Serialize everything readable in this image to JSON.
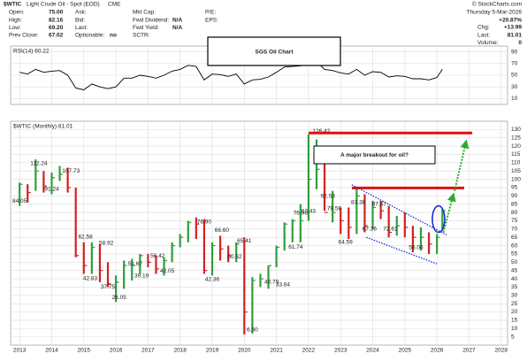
{
  "header": {
    "symbol": "$WTIC",
    "name": "Light Crude Oil - Spot (EOD)",
    "exchange": "CME",
    "watermark": "© StockCharts.com",
    "date": "Thursday  5-Mar-2026",
    "columns": [
      [
        {
          "label": "Open:",
          "value": "75.00"
        },
        {
          "label": "High:",
          "value": "82.16"
        },
        {
          "label": "Low:",
          "value": "69.20"
        },
        {
          "label": "Prev Close:",
          "value": "67.02"
        }
      ],
      [
        {
          "label": "Ask:"
        },
        {
          "label": "Bid:"
        },
        {
          "label": "Last:"
        },
        {
          "label": "Optionable:",
          "value": "no"
        }
      ],
      [
        {
          "label": "Mkt Cap:"
        },
        {
          "label": "Fwd Dividend:",
          "value": "N/A"
        },
        {
          "label": "Fwd Yield:",
          "value": "N/A"
        },
        {
          "label": "SCTR:"
        }
      ],
      [
        {
          "label": "P/E:"
        },
        {
          "label": "EPS:"
        }
      ]
    ],
    "change_pct": "+20.87%",
    "stats": [
      {
        "label": "Chg:",
        "value": "+13.99"
      },
      {
        "label": "Last:",
        "value": "81.01"
      },
      {
        "label": "Volume:",
        "value": "0"
      }
    ],
    "title_box": "SGS Oil Chart"
  },
  "chart_data": [
    {
      "type": "line",
      "label": "RSI(14) 60.22",
      "color": "#000000",
      "x": [
        2013,
        2013.25,
        2013.5,
        2013.75,
        2014,
        2014.25,
        2014.5,
        2014.75,
        2015,
        2015.25,
        2015.5,
        2015.75,
        2016,
        2016.25,
        2016.5,
        2016.75,
        2017,
        2017.25,
        2017.5,
        2017.75,
        2018,
        2018.25,
        2018.5,
        2018.75,
        2019,
        2019.25,
        2019.5,
        2019.75,
        2020,
        2020.25,
        2020.5,
        2020.75,
        2021,
        2021.25,
        2021.5,
        2021.75,
        2022,
        2022.25,
        2022.5,
        2022.75,
        2023,
        2023.25,
        2023.5,
        2023.75,
        2024,
        2024.25,
        2024.5,
        2024.75,
        2025,
        2025.25,
        2025.5,
        2025.75,
        2026,
        2026.17
      ],
      "values": [
        55,
        52,
        60,
        55,
        57,
        58,
        50,
        28,
        25,
        35,
        30,
        27,
        30,
        45,
        45,
        50,
        48,
        45,
        50,
        57,
        60,
        67,
        65,
        42,
        52,
        51,
        48,
        52,
        35,
        42,
        43,
        47,
        55,
        64,
        65,
        66,
        74,
        73,
        60,
        58,
        54,
        52,
        60,
        50,
        56,
        55,
        47,
        49,
        48,
        44,
        44,
        42,
        46,
        60.22
      ],
      "ylim": [
        0,
        100
      ],
      "yticks": [
        10,
        30,
        50,
        70,
        90
      ],
      "grid": true
    },
    {
      "type": "ohlc",
      "label": "$WTIC (Monthly) 81.01",
      "up_color": "#2e9e3e",
      "down_color": "#d32020",
      "x": [
        2013,
        2013.25,
        2013.5,
        2013.75,
        2014,
        2014.25,
        2014.5,
        2014.75,
        2015,
        2015.25,
        2015.5,
        2015.75,
        2016,
        2016.25,
        2016.5,
        2016.75,
        2017,
        2017.25,
        2017.5,
        2017.75,
        2018,
        2018.25,
        2018.5,
        2018.75,
        2019,
        2019.25,
        2019.5,
        2019.75,
        2020,
        2020.25,
        2020.5,
        2020.75,
        2021,
        2021.25,
        2021.5,
        2021.75,
        2022,
        2022.25,
        2022.5,
        2022.75,
        2023,
        2023.25,
        2023.5,
        2023.75,
        2024,
        2024.25,
        2024.5,
        2024.75,
        2025,
        2025.25,
        2025.5,
        2025.75,
        2026,
        2026.17
      ],
      "close": [
        97,
        92,
        105,
        96,
        101,
        103,
        95,
        54,
        48,
        59,
        45,
        37,
        38,
        48,
        48,
        54,
        50,
        46,
        51,
        60,
        65,
        74,
        73,
        45,
        60,
        58,
        54,
        61,
        20,
        39,
        40,
        48,
        59,
        73,
        75,
        75,
        100,
        106,
        80,
        80,
        75,
        71,
        90,
        72,
        83,
        81,
        68,
        72,
        71,
        65,
        65,
        61,
        65,
        81.01
      ],
      "high": [
        98,
        97,
        112,
        105,
        104,
        108,
        107,
        95,
        62,
        62,
        61,
        50,
        42,
        51,
        52,
        55,
        55,
        54,
        53,
        62,
        67,
        75,
        77,
        76,
        62,
        66,
        60,
        62,
        65,
        41,
        43,
        48,
        60,
        74,
        76,
        85,
        127,
        124,
        111,
        93,
        83,
        83,
        95,
        91,
        87,
        87,
        84,
        78,
        80,
        72,
        71,
        68,
        67,
        82
      ],
      "low": [
        84,
        86,
        93,
        92,
        91,
        99,
        92,
        53,
        43,
        43,
        38,
        35,
        26,
        34,
        39,
        43,
        47,
        43,
        42,
        50,
        59,
        62,
        64,
        43,
        42,
        51,
        50,
        50,
        6.5,
        7,
        35,
        34,
        47,
        57,
        62,
        62,
        75,
        94,
        81,
        74,
        67,
        64,
        67,
        68,
        70,
        76,
        65,
        66,
        65,
        56,
        57,
        55,
        55,
        69
      ],
      "xlim": [
        2012.72,
        2028.2
      ],
      "xticks": [
        2013,
        2014,
        2015,
        2016,
        2017,
        2018,
        2019,
        2020,
        2021,
        2022,
        2023,
        2024,
        2025,
        2026,
        2027,
        2028
      ],
      "ylim": [
        0,
        135
      ],
      "yticks": [
        5,
        10,
        15,
        20,
        25,
        30,
        35,
        40,
        45,
        50,
        55,
        60,
        65,
        70,
        75,
        80,
        85,
        90,
        95,
        100,
        105,
        110,
        115,
        120,
        125,
        130
      ],
      "grid": true,
      "annotations": [
        {
          "x": 2013,
          "value": 84.05,
          "label": "84.05"
        },
        {
          "x": 2013.6,
          "value": 112.24,
          "label": "112.24"
        },
        {
          "x": 2014,
          "value": 91.24,
          "label": "91.24"
        },
        {
          "x": 2014.6,
          "value": 107.73,
          "label": "107.73"
        },
        {
          "x": 2015.05,
          "value": 62.58,
          "label": "62.58"
        },
        {
          "x": 2015.2,
          "value": 42.83,
          "label": "42.83"
        },
        {
          "x": 2015.7,
          "value": 58.92,
          "label": "58.92"
        },
        {
          "x": 2015.75,
          "value": 37.75,
          "label": "37.75"
        },
        {
          "x": 2016.1,
          "value": 26.05,
          "label": "26.05"
        },
        {
          "x": 2016.6,
          "value": 51.67,
          "label": "51.67"
        },
        {
          "x": 2016.8,
          "value": 39.19,
          "label": "39.19"
        },
        {
          "x": 2017.3,
          "value": 56.42,
          "label": "56.42"
        },
        {
          "x": 2017.6,
          "value": 42.05,
          "label": "42.05"
        },
        {
          "x": 2018.75,
          "value": 76.9,
          "label": "76.90"
        },
        {
          "x": 2019.3,
          "value": 66.6,
          "label": "66.60"
        },
        {
          "x": 2019.0,
          "value": 42.36,
          "label": "42.36"
        },
        {
          "x": 2019.7,
          "value": 50.52,
          "label": "50.52"
        },
        {
          "x": 2020.0,
          "value": 65.41,
          "label": "65.41"
        },
        {
          "x": 2020.25,
          "value": 6.5,
          "label": "6.50"
        },
        {
          "x": 2020.85,
          "value": 40.79,
          "label": "40.79"
        },
        {
          "x": 2021.2,
          "value": 33.64,
          "label": "33.64"
        },
        {
          "x": 2021.6,
          "value": 61.74,
          "label": "61.74"
        },
        {
          "x": 2021.75,
          "value": 76.98,
          "label": "76.98"
        },
        {
          "x": 2022.0,
          "value": 83.43,
          "label": "83.43"
        },
        {
          "x": 2022.4,
          "value": 126.42,
          "label": "126.42"
        },
        {
          "x": 2022.6,
          "value": 92.53,
          "label": "92.53"
        },
        {
          "x": 2022.8,
          "value": 79.56,
          "label": "79.56"
        },
        {
          "x": 2023.15,
          "value": 64.59,
          "label": "64.59"
        },
        {
          "x": 2023.55,
          "value": 83.38,
          "label": "83.38"
        },
        {
          "x": 2024.2,
          "value": 87.67,
          "label": "87.67"
        },
        {
          "x": 2023.9,
          "value": 67.36,
          "label": "67.36"
        },
        {
          "x": 2024.55,
          "value": 72.61,
          "label": "72.61"
        },
        {
          "x": 2025.35,
          "value": 56.06,
          "label": "56.06"
        }
      ],
      "callout": "A major breakout for oil?",
      "resistance": [
        {
          "from": 2022.0,
          "to": 2027.1,
          "value": 127.9
        },
        {
          "from": 2023.35,
          "to": 2026.85,
          "value": 94.8
        }
      ],
      "trendlines": [
        {
          "x": [
            2023.35,
            2026.3
          ],
          "values": [
            96.7,
            66.5
          ]
        },
        {
          "x": [
            2023.8,
            2026.0
          ],
          "values": [
            65,
            49
          ]
        }
      ],
      "arrows": [
        {
          "x": [
            2026.2,
            2026.5
          ],
          "values": [
            68,
            90
          ]
        },
        {
          "x": [
            2026.55,
            2026.9
          ],
          "values": [
            93,
            122
          ]
        }
      ],
      "highlight": {
        "x": 2026.05,
        "value": 76
      }
    }
  ]
}
